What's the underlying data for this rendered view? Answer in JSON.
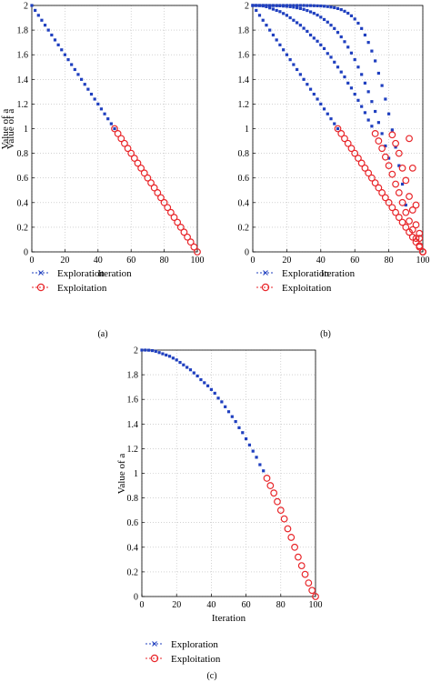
{
  "panel_labels": [
    "(a)",
    "(b)",
    "(c)"
  ],
  "legend": {
    "exploration": "Exploration",
    "exploitation": "Exploitation"
  },
  "colors": {
    "exploration": "#1f3fbf",
    "exploitation": "#e8262a"
  },
  "chart_data": [
    {
      "type": "scatter",
      "xlabel": "Iteration",
      "ylabel": "Value of a",
      "xlim": [
        0,
        100
      ],
      "ylim": [
        0,
        2
      ],
      "xticks": [
        0,
        20,
        40,
        60,
        80,
        100
      ],
      "xtick_labels": [
        "0",
        "20",
        "40",
        "60",
        "80",
        "100"
      ],
      "yticks": [
        0,
        0.2,
        0.4,
        0.6,
        0.8,
        1,
        1.2,
        1.4,
        1.6,
        1.8,
        2
      ],
      "ytick_labels": [
        "0",
        "0.2",
        "0.4",
        "0.6",
        "0.8",
        "1",
        "1.2",
        "1.4",
        "1.6",
        "1.8",
        "2"
      ],
      "grid": true,
      "legend_position": "below",
      "series": [
        {
          "role": "exploration",
          "name": "Exploration",
          "curves": [
            {
              "x": [
                0,
                2,
                4,
                6,
                8,
                10,
                12,
                14,
                16,
                18,
                20,
                22,
                24,
                26,
                28,
                30,
                32,
                34,
                36,
                38,
                40,
                42,
                44,
                46,
                48,
                50
              ],
              "y": [
                2,
                1.96,
                1.92,
                1.88,
                1.84,
                1.8,
                1.76,
                1.72,
                1.68,
                1.64,
                1.6,
                1.56,
                1.52,
                1.48,
                1.44,
                1.4,
                1.36,
                1.32,
                1.28,
                1.24,
                1.2,
                1.16,
                1.12,
                1.08,
                1.04,
                1
              ]
            }
          ]
        },
        {
          "role": "exploitation",
          "name": "Exploitation",
          "curves": [
            {
              "x": [
                50,
                52,
                54,
                56,
                58,
                60,
                62,
                64,
                66,
                68,
                70,
                72,
                74,
                76,
                78,
                80,
                82,
                84,
                86,
                88,
                90,
                92,
                94,
                96,
                98,
                100
              ],
              "y": [
                1,
                0.96,
                0.92,
                0.88,
                0.84,
                0.8,
                0.76,
                0.72,
                0.68,
                0.64,
                0.6,
                0.56,
                0.52,
                0.48,
                0.44,
                0.4,
                0.36,
                0.32,
                0.28,
                0.24,
                0.2,
                0.16,
                0.12,
                0.08,
                0.04,
                0
              ]
            }
          ]
        }
      ]
    },
    {
      "type": "scatter",
      "xlabel": "Iteration",
      "ylabel": "Value of a",
      "xlim": [
        0,
        100
      ],
      "ylim": [
        0,
        2
      ],
      "xticks": [
        0,
        20,
        40,
        60,
        80,
        100
      ],
      "xtick_labels": [
        "0",
        "20",
        "40",
        "60",
        "80",
        "100"
      ],
      "yticks": [
        0,
        0.2,
        0.4,
        0.6,
        0.8,
        1,
        1.2,
        1.4,
        1.6,
        1.8,
        2
      ],
      "ytick_labels": [
        "0",
        "0.2",
        "0.4",
        "0.6",
        "0.8",
        "1",
        "1.2",
        "1.4",
        "1.6",
        "1.8",
        "2"
      ],
      "grid": true,
      "legend_position": "below",
      "series": [
        {
          "role": "exploration",
          "name": "Exploration",
          "curves": [
            {
              "x": [
                0,
                2,
                4,
                6,
                8,
                10,
                12,
                14,
                16,
                18,
                20,
                22,
                24,
                26,
                28,
                30,
                32,
                34,
                36,
                38,
                40,
                42,
                44,
                46,
                48,
                50
              ],
              "y": [
                2,
                1.96,
                1.92,
                1.88,
                1.84,
                1.8,
                1.76,
                1.72,
                1.68,
                1.64,
                1.6,
                1.56,
                1.52,
                1.48,
                1.44,
                1.4,
                1.36,
                1.32,
                1.28,
                1.24,
                1.2,
                1.16,
                1.12,
                1.08,
                1.04,
                1
              ]
            },
            {
              "x": [
                0,
                2,
                4,
                6,
                8,
                10,
                12,
                14,
                16,
                18,
                20,
                22,
                24,
                26,
                28,
                30,
                32,
                34,
                36,
                38,
                40,
                42,
                44,
                46,
                48,
                50,
                52,
                54,
                56,
                58,
                60,
                62,
                64,
                66,
                68,
                70
              ],
              "y": [
                2,
                2,
                1.999,
                1.996,
                1.99,
                1.98,
                1.97,
                1.96,
                1.95,
                1.935,
                1.92,
                1.9,
                1.88,
                1.86,
                1.84,
                1.815,
                1.79,
                1.76,
                1.735,
                1.71,
                1.68,
                1.65,
                1.61,
                1.58,
                1.54,
                1.5,
                1.46,
                1.42,
                1.37,
                1.33,
                1.28,
                1.23,
                1.18,
                1.13,
                1.07,
                1.02
              ]
            },
            {
              "x": [
                0,
                2,
                4,
                6,
                8,
                10,
                12,
                14,
                16,
                18,
                20,
                22,
                24,
                26,
                28,
                30,
                32,
                34,
                36,
                38,
                40,
                42,
                44,
                46,
                48,
                50,
                52,
                54,
                56,
                58,
                60,
                62,
                64,
                66,
                68,
                70,
                72,
                74,
                76,
                78,
                80
              ],
              "y": [
                2,
                2,
                2,
                2,
                2,
                1.999,
                1.999,
                1.998,
                1.997,
                1.995,
                1.993,
                1.99,
                1.986,
                1.981,
                1.975,
                1.968,
                1.959,
                1.948,
                1.936,
                1.922,
                1.905,
                1.886,
                1.865,
                1.84,
                1.813,
                1.781,
                1.745,
                1.706,
                1.662,
                1.614,
                1.56,
                1.5,
                1.44,
                1.37,
                1.3,
                1.22,
                1.14,
                1.05,
                0.96,
                0.86,
                0.76
              ]
            },
            {
              "x": [
                0,
                2,
                4,
                6,
                8,
                10,
                12,
                14,
                16,
                18,
                20,
                22,
                24,
                26,
                28,
                30,
                32,
                34,
                36,
                38,
                40,
                42,
                44,
                46,
                48,
                50,
                52,
                54,
                56,
                58,
                60,
                62,
                64,
                66,
                68,
                70,
                72,
                74,
                76,
                78,
                80,
                82,
                84,
                86,
                88,
                90
              ],
              "y": [
                2,
                2,
                2,
                2,
                2,
                2,
                2,
                2,
                2,
                2,
                2,
                2,
                2,
                2,
                2,
                2,
                1.999,
                1.999,
                1.998,
                1.997,
                1.996,
                1.994,
                1.991,
                1.987,
                1.982,
                1.975,
                1.966,
                1.953,
                1.937,
                1.916,
                1.89,
                1.856,
                1.813,
                1.76,
                1.7,
                1.63,
                1.55,
                1.45,
                1.35,
                1.24,
                1.12,
                0.99,
                0.85,
                0.7,
                0.55,
                0.38
              ]
            }
          ]
        },
        {
          "role": "exploitation",
          "name": "Exploitation",
          "curves": [
            {
              "x": [
                50,
                52,
                54,
                56,
                58,
                60,
                62,
                64,
                66,
                68,
                70,
                72,
                74,
                76,
                78,
                80,
                82,
                84,
                86,
                88,
                90,
                92,
                94,
                96,
                98,
                100
              ],
              "y": [
                1,
                0.96,
                0.92,
                0.88,
                0.84,
                0.8,
                0.76,
                0.72,
                0.68,
                0.64,
                0.6,
                0.56,
                0.52,
                0.48,
                0.44,
                0.4,
                0.36,
                0.32,
                0.28,
                0.24,
                0.2,
                0.16,
                0.12,
                0.08,
                0.04,
                0
              ]
            },
            {
              "x": [
                72,
                74,
                76,
                78,
                80,
                82,
                84,
                86,
                88,
                90,
                92,
                94,
                96,
                98,
                100
              ],
              "y": [
                0.96,
                0.9,
                0.84,
                0.77,
                0.7,
                0.63,
                0.55,
                0.48,
                0.4,
                0.32,
                0.25,
                0.18,
                0.11,
                0.05,
                0
              ]
            },
            {
              "x": [
                82,
                84,
                86,
                88,
                90,
                92,
                94,
                96,
                98,
                100
              ],
              "y": [
                0.95,
                0.88,
                0.8,
                0.68,
                0.58,
                0.45,
                0.34,
                0.22,
                0.11,
                0
              ]
            },
            {
              "x": [
                92,
                94,
                96,
                98,
                100
              ],
              "y": [
                0.92,
                0.68,
                0.38,
                0.15,
                0
              ]
            }
          ]
        }
      ]
    },
    {
      "type": "scatter",
      "xlabel": "Iteration",
      "ylabel": "Value of a",
      "xlim": [
        0,
        100
      ],
      "ylim": [
        0,
        2
      ],
      "xticks": [
        0,
        20,
        40,
        60,
        80,
        100
      ],
      "xtick_labels": [
        "0",
        "20",
        "40",
        "60",
        "80",
        "100"
      ],
      "yticks": [
        0,
        0.2,
        0.4,
        0.6,
        0.8,
        1,
        1.2,
        1.4,
        1.6,
        1.8,
        2
      ],
      "ytick_labels": [
        "0",
        "0.2",
        "0.4",
        "0.6",
        "0.8",
        "1",
        "1.2",
        "1.4",
        "1.6",
        "1.8",
        "2"
      ],
      "grid": true,
      "legend_position": "below",
      "series": [
        {
          "role": "exploration",
          "name": "Exploration",
          "curves": [
            {
              "x": [
                0,
                2,
                4,
                6,
                8,
                10,
                12,
                14,
                16,
                18,
                20,
                22,
                24,
                26,
                28,
                30,
                32,
                34,
                36,
                38,
                40,
                42,
                44,
                46,
                48,
                50,
                52,
                54,
                56,
                58,
                60,
                62,
                64,
                66,
                68,
                70
              ],
              "y": [
                2,
                2,
                1.999,
                1.996,
                1.99,
                1.98,
                1.97,
                1.96,
                1.95,
                1.935,
                1.92,
                1.9,
                1.88,
                1.86,
                1.84,
                1.815,
                1.79,
                1.76,
                1.735,
                1.71,
                1.68,
                1.65,
                1.61,
                1.58,
                1.54,
                1.5,
                1.46,
                1.42,
                1.37,
                1.33,
                1.28,
                1.23,
                1.18,
                1.13,
                1.07,
                1.02
              ]
            }
          ]
        },
        {
          "role": "exploitation",
          "name": "Exploitation",
          "curves": [
            {
              "x": [
                72,
                74,
                76,
                78,
                80,
                82,
                84,
                86,
                88,
                90,
                92,
                94,
                96,
                98,
                100
              ],
              "y": [
                0.96,
                0.9,
                0.84,
                0.77,
                0.7,
                0.63,
                0.55,
                0.48,
                0.4,
                0.32,
                0.25,
                0.18,
                0.11,
                0.05,
                0
              ]
            }
          ]
        }
      ]
    }
  ]
}
